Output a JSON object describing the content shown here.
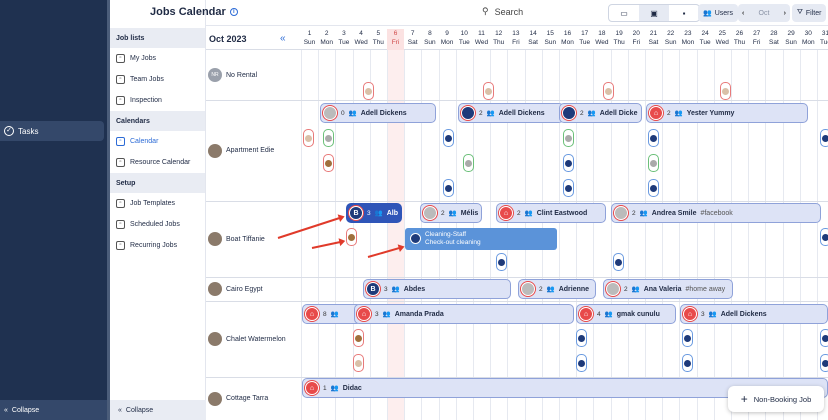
{
  "nav": {
    "tasks_label": "Tasks",
    "collapse_label": "Collapse"
  },
  "sidebar": {
    "sections": [
      {
        "title": "Job lists",
        "items": [
          {
            "label": "My Jobs",
            "icon": "briefcase-icon"
          },
          {
            "label": "Team Jobs",
            "icon": "team-icon"
          },
          {
            "label": "Inspection",
            "icon": "clipboard-icon"
          }
        ]
      },
      {
        "title": "Calendars",
        "items": [
          {
            "label": "Calendar",
            "icon": "calendar-icon",
            "active": true
          },
          {
            "label": "Resource Calendar",
            "icon": "resource-calendar-icon"
          }
        ]
      },
      {
        "title": "Setup",
        "items": [
          {
            "label": "Job Templates",
            "icon": "template-icon"
          },
          {
            "label": "Scheduled Jobs",
            "icon": "clock-icon"
          },
          {
            "label": "Recurring Jobs",
            "icon": "repeat-icon"
          }
        ]
      }
    ],
    "collapse_label": "Collapse"
  },
  "header": {
    "title": "Jobs Calendar",
    "search_label": "Search",
    "users_label": "Users",
    "month_short": "Oct",
    "filter_label": "Filter"
  },
  "calendar": {
    "month_label": "Oct 2023",
    "days": [
      {
        "d": "1",
        "w": "Sun"
      },
      {
        "d": "2",
        "w": "Mon"
      },
      {
        "d": "3",
        "w": "Tue"
      },
      {
        "d": "4",
        "w": "Wed"
      },
      {
        "d": "5",
        "w": "Thu"
      },
      {
        "d": "6",
        "w": "Fri"
      },
      {
        "d": "7",
        "w": "Sat"
      },
      {
        "d": "8",
        "w": "Sun"
      },
      {
        "d": "9",
        "w": "Mon"
      },
      {
        "d": "10",
        "w": "Tue"
      },
      {
        "d": "11",
        "w": "Wed"
      },
      {
        "d": "12",
        "w": "Thu"
      },
      {
        "d": "13",
        "w": "Fri"
      },
      {
        "d": "14",
        "w": "Sat"
      },
      {
        "d": "15",
        "w": "Sun"
      },
      {
        "d": "16",
        "w": "Mon"
      },
      {
        "d": "17",
        "w": "Tue"
      },
      {
        "d": "18",
        "w": "Wed"
      },
      {
        "d": "19",
        "w": "Thu"
      },
      {
        "d": "20",
        "w": "Fri"
      },
      {
        "d": "21",
        "w": "Sat"
      },
      {
        "d": "22",
        "w": "Sun"
      },
      {
        "d": "23",
        "w": "Mon"
      },
      {
        "d": "24",
        "w": "Tue"
      },
      {
        "d": "25",
        "w": "Wed"
      },
      {
        "d": "26",
        "w": "Thu"
      },
      {
        "d": "27",
        "w": "Fri"
      },
      {
        "d": "28",
        "w": "Sat"
      },
      {
        "d": "29",
        "w": "Sun"
      },
      {
        "d": "30",
        "w": "Mon"
      },
      {
        "d": "31",
        "w": "Tue"
      },
      {
        "d": "1",
        "w": "Wed"
      }
    ],
    "today_index": 5,
    "rows": [
      {
        "name": "No Rental",
        "avatar": "NR"
      },
      {
        "name": "Apartment Edie"
      },
      {
        "name": "Boat Tiffanie"
      },
      {
        "name": "Cairo Egypt"
      },
      {
        "name": "Chalet Watermelon"
      },
      {
        "name": "Cottage Tarra"
      }
    ],
    "jobs": [
      {
        "count": "0",
        "title": "Adell Dickens",
        "tag": ""
      },
      {
        "count": "2",
        "title": "Adell Dickens",
        "tag": ""
      },
      {
        "count": "2",
        "title": "Adell Dicke",
        "tag": ""
      },
      {
        "count": "2",
        "title": "Yester Yummy",
        "tag": ""
      },
      {
        "count": "3",
        "title": "Alb",
        "tag": "",
        "icon_text": "B"
      },
      {
        "count": "2",
        "title": "Mélis",
        "tag": ""
      },
      {
        "count": "2",
        "title": "Clint Eastwood",
        "tag": ""
      },
      {
        "count": "2",
        "title": "Andrea Smile",
        "tag": "#facebook"
      },
      {
        "count": "3",
        "title": "Abdes",
        "tag": "",
        "icon_text": "B"
      },
      {
        "count": "2",
        "title": "Adrienne",
        "tag": ""
      },
      {
        "count": "2",
        "title": "Ana Valeria",
        "tag": "#home away"
      },
      {
        "count": "8",
        "title": "",
        "tag": ""
      },
      {
        "count": "3",
        "title": "Amanda Prada",
        "tag": ""
      },
      {
        "count": "4",
        "title": "gmak cunulu",
        "tag": ""
      },
      {
        "count": "3",
        "title": "Adell Dickens",
        "tag": ""
      },
      {
        "count": "1",
        "title": "Didac",
        "tag": ""
      }
    ],
    "tooltip": {
      "line1": "Cleaning-Staff",
      "line2": "Check-out cleaning"
    }
  },
  "non_booking_label": "Non-Booking Job"
}
